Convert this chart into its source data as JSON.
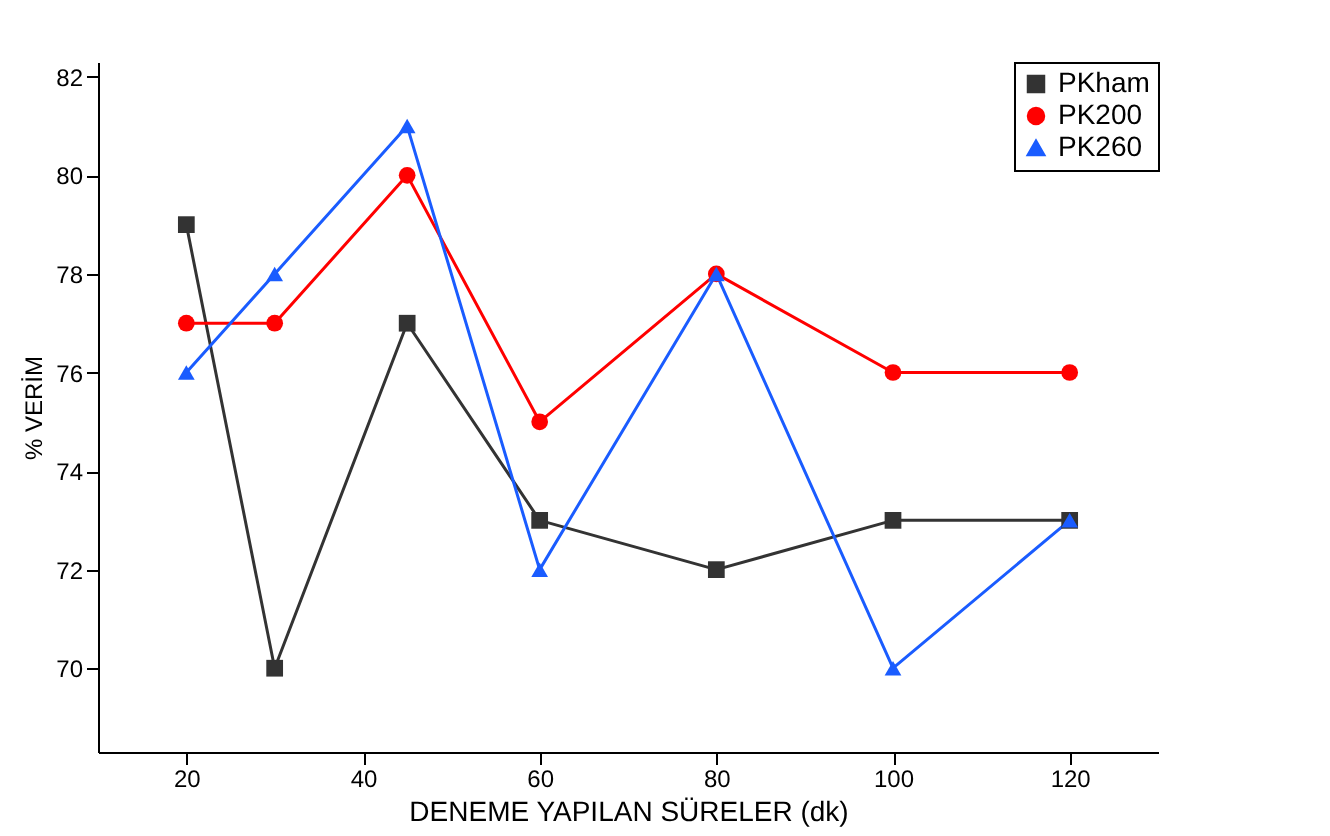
{
  "chart_data": {
    "type": "line",
    "xlabel": "DENEME YAPILAN SÜRELER (dk)",
    "ylabel": "% VERİM",
    "x": [
      20,
      30,
      45,
      60,
      80,
      100,
      120
    ],
    "series": [
      {
        "name": "PKham",
        "color": "#333333",
        "marker": "square",
        "values": [
          79,
          70,
          77,
          73,
          72,
          73,
          73
        ]
      },
      {
        "name": "PK200",
        "color": "#ff0000",
        "marker": "circle",
        "values": [
          77,
          77,
          80,
          75,
          78,
          76,
          76
        ]
      },
      {
        "name": "PK260",
        "color": "#1a5cff",
        "marker": "triangle",
        "values": [
          76,
          78,
          81,
          72,
          78,
          70,
          73
        ]
      }
    ],
    "xlim": [
      10,
      130
    ],
    "xticks": [
      20,
      40,
      60,
      80,
      100,
      120
    ],
    "ylim": [
      68.3,
      82.3
    ],
    "yticks": [
      70,
      72,
      74,
      76,
      78,
      80,
      82
    ],
    "legend": "top right",
    "grid": false,
    "line_style": "solid"
  }
}
